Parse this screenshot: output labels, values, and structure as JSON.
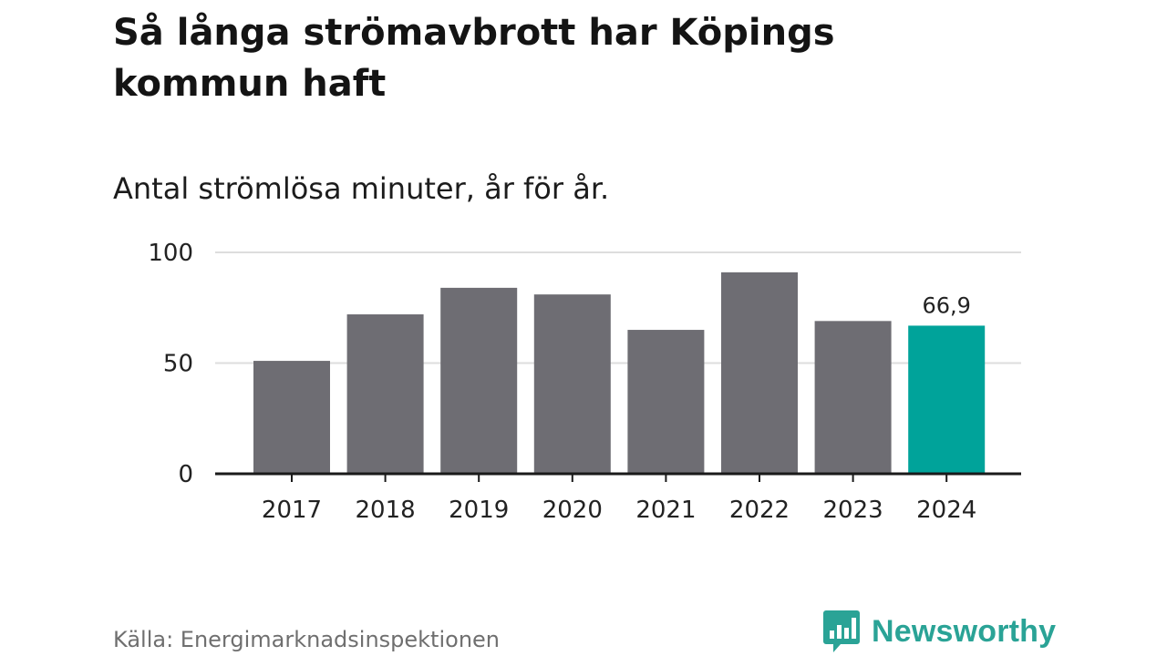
{
  "title": "Så långa strömavbrott har Köpings kommun haft",
  "subtitle": "Antal strömlösa minuter, år för år.",
  "source": "Källa: Energimarknadsinspektionen",
  "brand": "Newsworthy",
  "colors": {
    "bar_default": "#6e6d73",
    "bar_highlight": "#00a39a",
    "grid": "#dddddd",
    "axis": "#1a1a1a",
    "brand": "#2aa396"
  },
  "chart_data": {
    "type": "bar",
    "title": "Så långa strömavbrott har Köpings kommun haft",
    "subtitle": "Antal strömlösa minuter, år för år.",
    "categories": [
      "2017",
      "2018",
      "2019",
      "2020",
      "2021",
      "2022",
      "2023",
      "2024"
    ],
    "values": [
      51,
      72,
      84,
      81,
      65,
      91,
      69,
      66.9
    ],
    "highlight_index": 7,
    "data_labels": [
      "",
      "",
      "",
      "",
      "",
      "",
      "",
      "66,9"
    ],
    "ylim": [
      0,
      100
    ],
    "yticks": [
      0,
      50,
      100
    ],
    "ytick_labels": [
      "0",
      "50",
      "100"
    ],
    "xlabel": "",
    "ylabel": "",
    "grid": true
  }
}
